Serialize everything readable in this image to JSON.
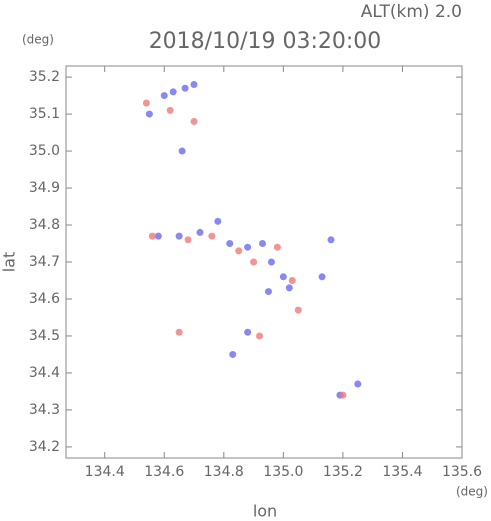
{
  "chart_data": {
    "type": "scatter",
    "title": "2018/10/19 03:20:00",
    "annotation": "ALT(km) 2.0",
    "x_label": "lon",
    "y_label": "lat",
    "x_unit": "(deg)",
    "y_unit": "(deg)",
    "xlim": [
      134.27,
      135.6
    ],
    "ylim": [
      34.17,
      35.23
    ],
    "xticks": [
      134.4,
      134.6,
      134.8,
      {
        "value": 135,
        "label": "135.0"
      },
      135.2,
      135.4,
      135.6
    ],
    "yticks": [
      34.2,
      34.3,
      34.4,
      34.5,
      34.6,
      34.7,
      34.8,
      34.9,
      {
        "value": 35,
        "label": "35.0"
      },
      35.1,
      35.2
    ],
    "grid": false,
    "series": [
      {
        "color": "#6a6af0",
        "x": [
          134.55,
          134.6,
          134.63,
          134.67,
          134.7,
          134.66,
          134.58,
          134.65,
          134.72,
          134.78,
          134.82,
          134.88,
          134.93,
          134.96,
          135.0,
          135.02,
          134.95,
          134.88,
          134.83,
          135.25,
          135.19,
          135.13,
          135.16
        ],
        "values": [
          35.1,
          35.15,
          35.16,
          35.17,
          35.18,
          35.0,
          34.77,
          34.77,
          34.78,
          34.81,
          34.75,
          34.74,
          34.75,
          34.7,
          34.66,
          34.63,
          34.62,
          34.51,
          34.45,
          34.37,
          34.34,
          34.66,
          34.76
        ]
      },
      {
        "color": "#f07878",
        "x": [
          134.54,
          134.62,
          134.7,
          134.56,
          134.68,
          134.76,
          134.85,
          134.9,
          134.98,
          135.03,
          135.05,
          134.92,
          134.65,
          135.2
        ],
        "values": [
          35.13,
          35.11,
          35.08,
          34.77,
          34.76,
          34.77,
          34.73,
          34.7,
          34.74,
          34.65,
          34.57,
          34.5,
          34.51,
          34.34
        ]
      }
    ]
  }
}
